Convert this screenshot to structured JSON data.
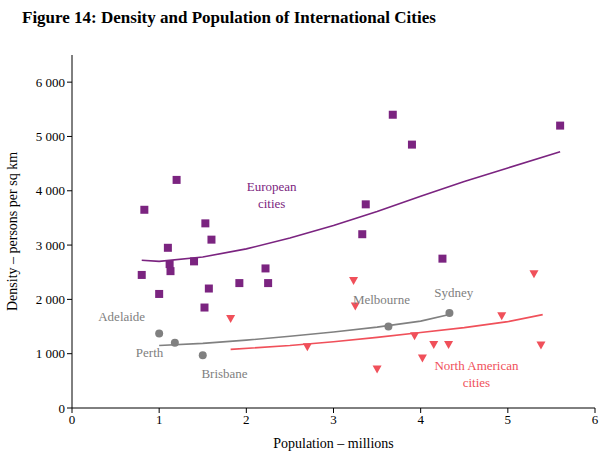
{
  "chart_data": {
    "type": "scatter",
    "title": "Figure 14: Density and Population of International Cities",
    "x_label": "Population – millions",
    "y_label": "Density – persons per sq km",
    "xlim": [
      0,
      6
    ],
    "xticks": [
      0,
      1,
      2,
      3,
      4,
      5,
      6
    ],
    "ylim": [
      0,
      6500
    ],
    "yticks": [
      0,
      {
        "value": 1000,
        "label": "1 000"
      },
      {
        "value": 2000,
        "label": "2 000"
      },
      {
        "value": 3000,
        "label": "3 000"
      },
      {
        "value": 4000,
        "label": "4 000"
      },
      {
        "value": 5000,
        "label": "5 000"
      },
      {
        "value": 6000,
        "label": "6 000"
      }
    ],
    "grid": false,
    "series": [
      {
        "type": "scatter",
        "marker": "square",
        "color": "#7b2480",
        "x": [
          0.8,
          0.83,
          1.0,
          1.1,
          1.12,
          1.13,
          1.2,
          1.4,
          1.52,
          1.53,
          1.57,
          1.6,
          1.92,
          2.22,
          2.25,
          3.33,
          3.37,
          3.68,
          3.9,
          4.25,
          5.6
        ],
        "values": [
          2450,
          3650,
          2100,
          2950,
          2650,
          2520,
          4200,
          2700,
          1850,
          3400,
          2200,
          3100,
          2300,
          2570,
          2300,
          3200,
          3750,
          5400,
          4850,
          2750,
          5200
        ]
      },
      {
        "type": "scatter",
        "marker": "circle",
        "color": "#808080",
        "x": [
          1.0,
          1.18,
          1.5,
          3.63,
          4.33
        ],
        "values": [
          1370,
          1200,
          970,
          1500,
          1750
        ]
      },
      {
        "type": "scatter",
        "marker": "triangle-down",
        "color": "#f0505a",
        "x": [
          1.82,
          2.7,
          3.23,
          3.25,
          3.5,
          3.93,
          4.02,
          4.15,
          4.32,
          4.93,
          5.3,
          5.38
        ],
        "values": [
          1650,
          1130,
          2350,
          1880,
          720,
          1330,
          920,
          1170,
          1170,
          1700,
          2470,
          1160
        ]
      },
      {
        "type": "line",
        "line_style": "solid",
        "color": "#7b2480",
        "x": [
          0.8,
          1.0,
          1.5,
          2.0,
          2.5,
          3.0,
          3.5,
          4.0,
          4.5,
          5.0,
          5.6
        ],
        "values": [
          2720,
          2700,
          2780,
          2930,
          3130,
          3360,
          3620,
          3900,
          4170,
          4420,
          4720
        ]
      },
      {
        "type": "line",
        "line_style": "solid",
        "color": "#808080",
        "x": [
          1.0,
          1.5,
          2.0,
          2.5,
          3.0,
          3.5,
          4.0,
          4.33
        ],
        "values": [
          1150,
          1190,
          1250,
          1320,
          1400,
          1490,
          1600,
          1720
        ]
      },
      {
        "type": "line",
        "line_style": "solid",
        "color": "#f0505a",
        "x": [
          1.82,
          2.5,
          3.0,
          3.5,
          4.0,
          4.5,
          5.0,
          5.4
        ],
        "values": [
          1080,
          1150,
          1220,
          1300,
          1390,
          1480,
          1590,
          1720
        ]
      }
    ],
    "annotations": [
      {
        "text": "European\ncities",
        "x": 2.29,
        "y": 4000,
        "color": "#7b2480"
      },
      {
        "text": "North American\ncities",
        "x": 4.64,
        "y": 700,
        "color": "#f0505a"
      },
      {
        "text": "Adelaide",
        "x": 0.57,
        "y": 1600,
        "color": "#808080"
      },
      {
        "text": "Perth",
        "x": 0.89,
        "y": 930,
        "color": "#808080"
      },
      {
        "text": "Brisbane",
        "x": 1.75,
        "y": 560,
        "color": "#808080"
      },
      {
        "text": "Melbourne",
        "x": 3.55,
        "y": 1910,
        "color": "#808080"
      },
      {
        "text": "Sydney",
        "x": 4.38,
        "y": 2040,
        "color": "#808080"
      }
    ]
  }
}
